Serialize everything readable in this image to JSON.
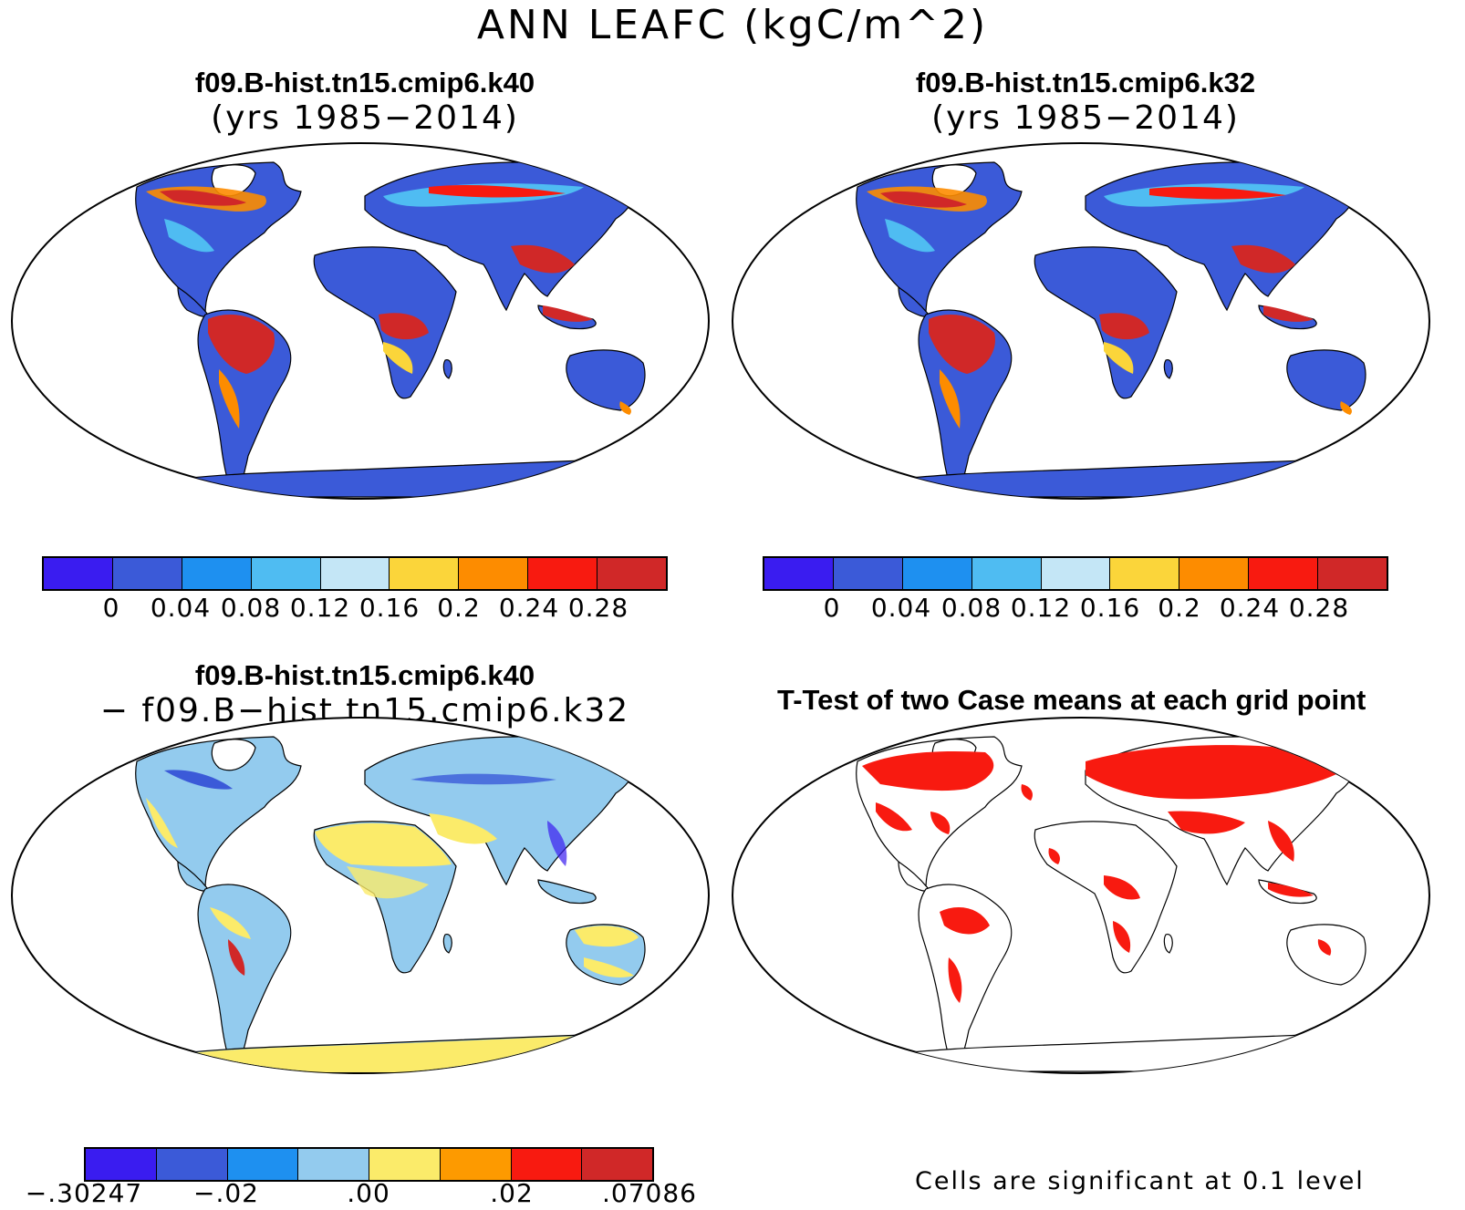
{
  "main_title": "ANN LEAFC (kgC/m^2)",
  "panels": {
    "top_left": {
      "title": "f09.B-hist.tn15.cmip6.k40",
      "subtitle": "(yrs 1985−2014)"
    },
    "top_right": {
      "title": "f09.B-hist.tn15.cmip6.k32",
      "subtitle": "(yrs 1985−2014)"
    },
    "bottom_left": {
      "title": "f09.B-hist.tn15.cmip6.k40",
      "subtitle": "− f09.B−hist.tn15.cmip6.k32"
    },
    "bottom_right": {
      "title": "T-Test of two Case means at each grid point",
      "note": "Cells are significant at 0.1 level"
    }
  },
  "colorbar_abs": {
    "colors": [
      "#3a1cf0",
      "#3b5ad8",
      "#1e90f0",
      "#4fbcf2",
      "#c4e6f6",
      "#fbd53a",
      "#fd8c00",
      "#f81a10",
      "#d02828"
    ],
    "labels": [
      "0",
      "0.04",
      "0.08",
      "0.12",
      "0.16",
      "0.2",
      "0.24",
      "0.28"
    ]
  },
  "colorbar_diff": {
    "colors": [
      "#3a1cf0",
      "#3b5ad8",
      "#1e90f0",
      "#93cbee",
      "#fbeb6a",
      "#fd9a00",
      "#f81a10",
      "#d02828"
    ],
    "labels": [
      "−.30247",
      "−.02",
      ".00",
      ".02",
      ".07086"
    ]
  },
  "chart_data": {
    "type": "heatmap",
    "title": "ANN LEAFC (kgC/m^2)",
    "abs_levels": [
      0,
      0.04,
      0.08,
      0.12,
      0.16,
      0.2,
      0.24,
      0.28
    ],
    "diff_levels_labeled": [
      -0.30247,
      -0.02,
      0.0,
      0.02,
      0.07086
    ],
    "significance_level": 0.1
  }
}
